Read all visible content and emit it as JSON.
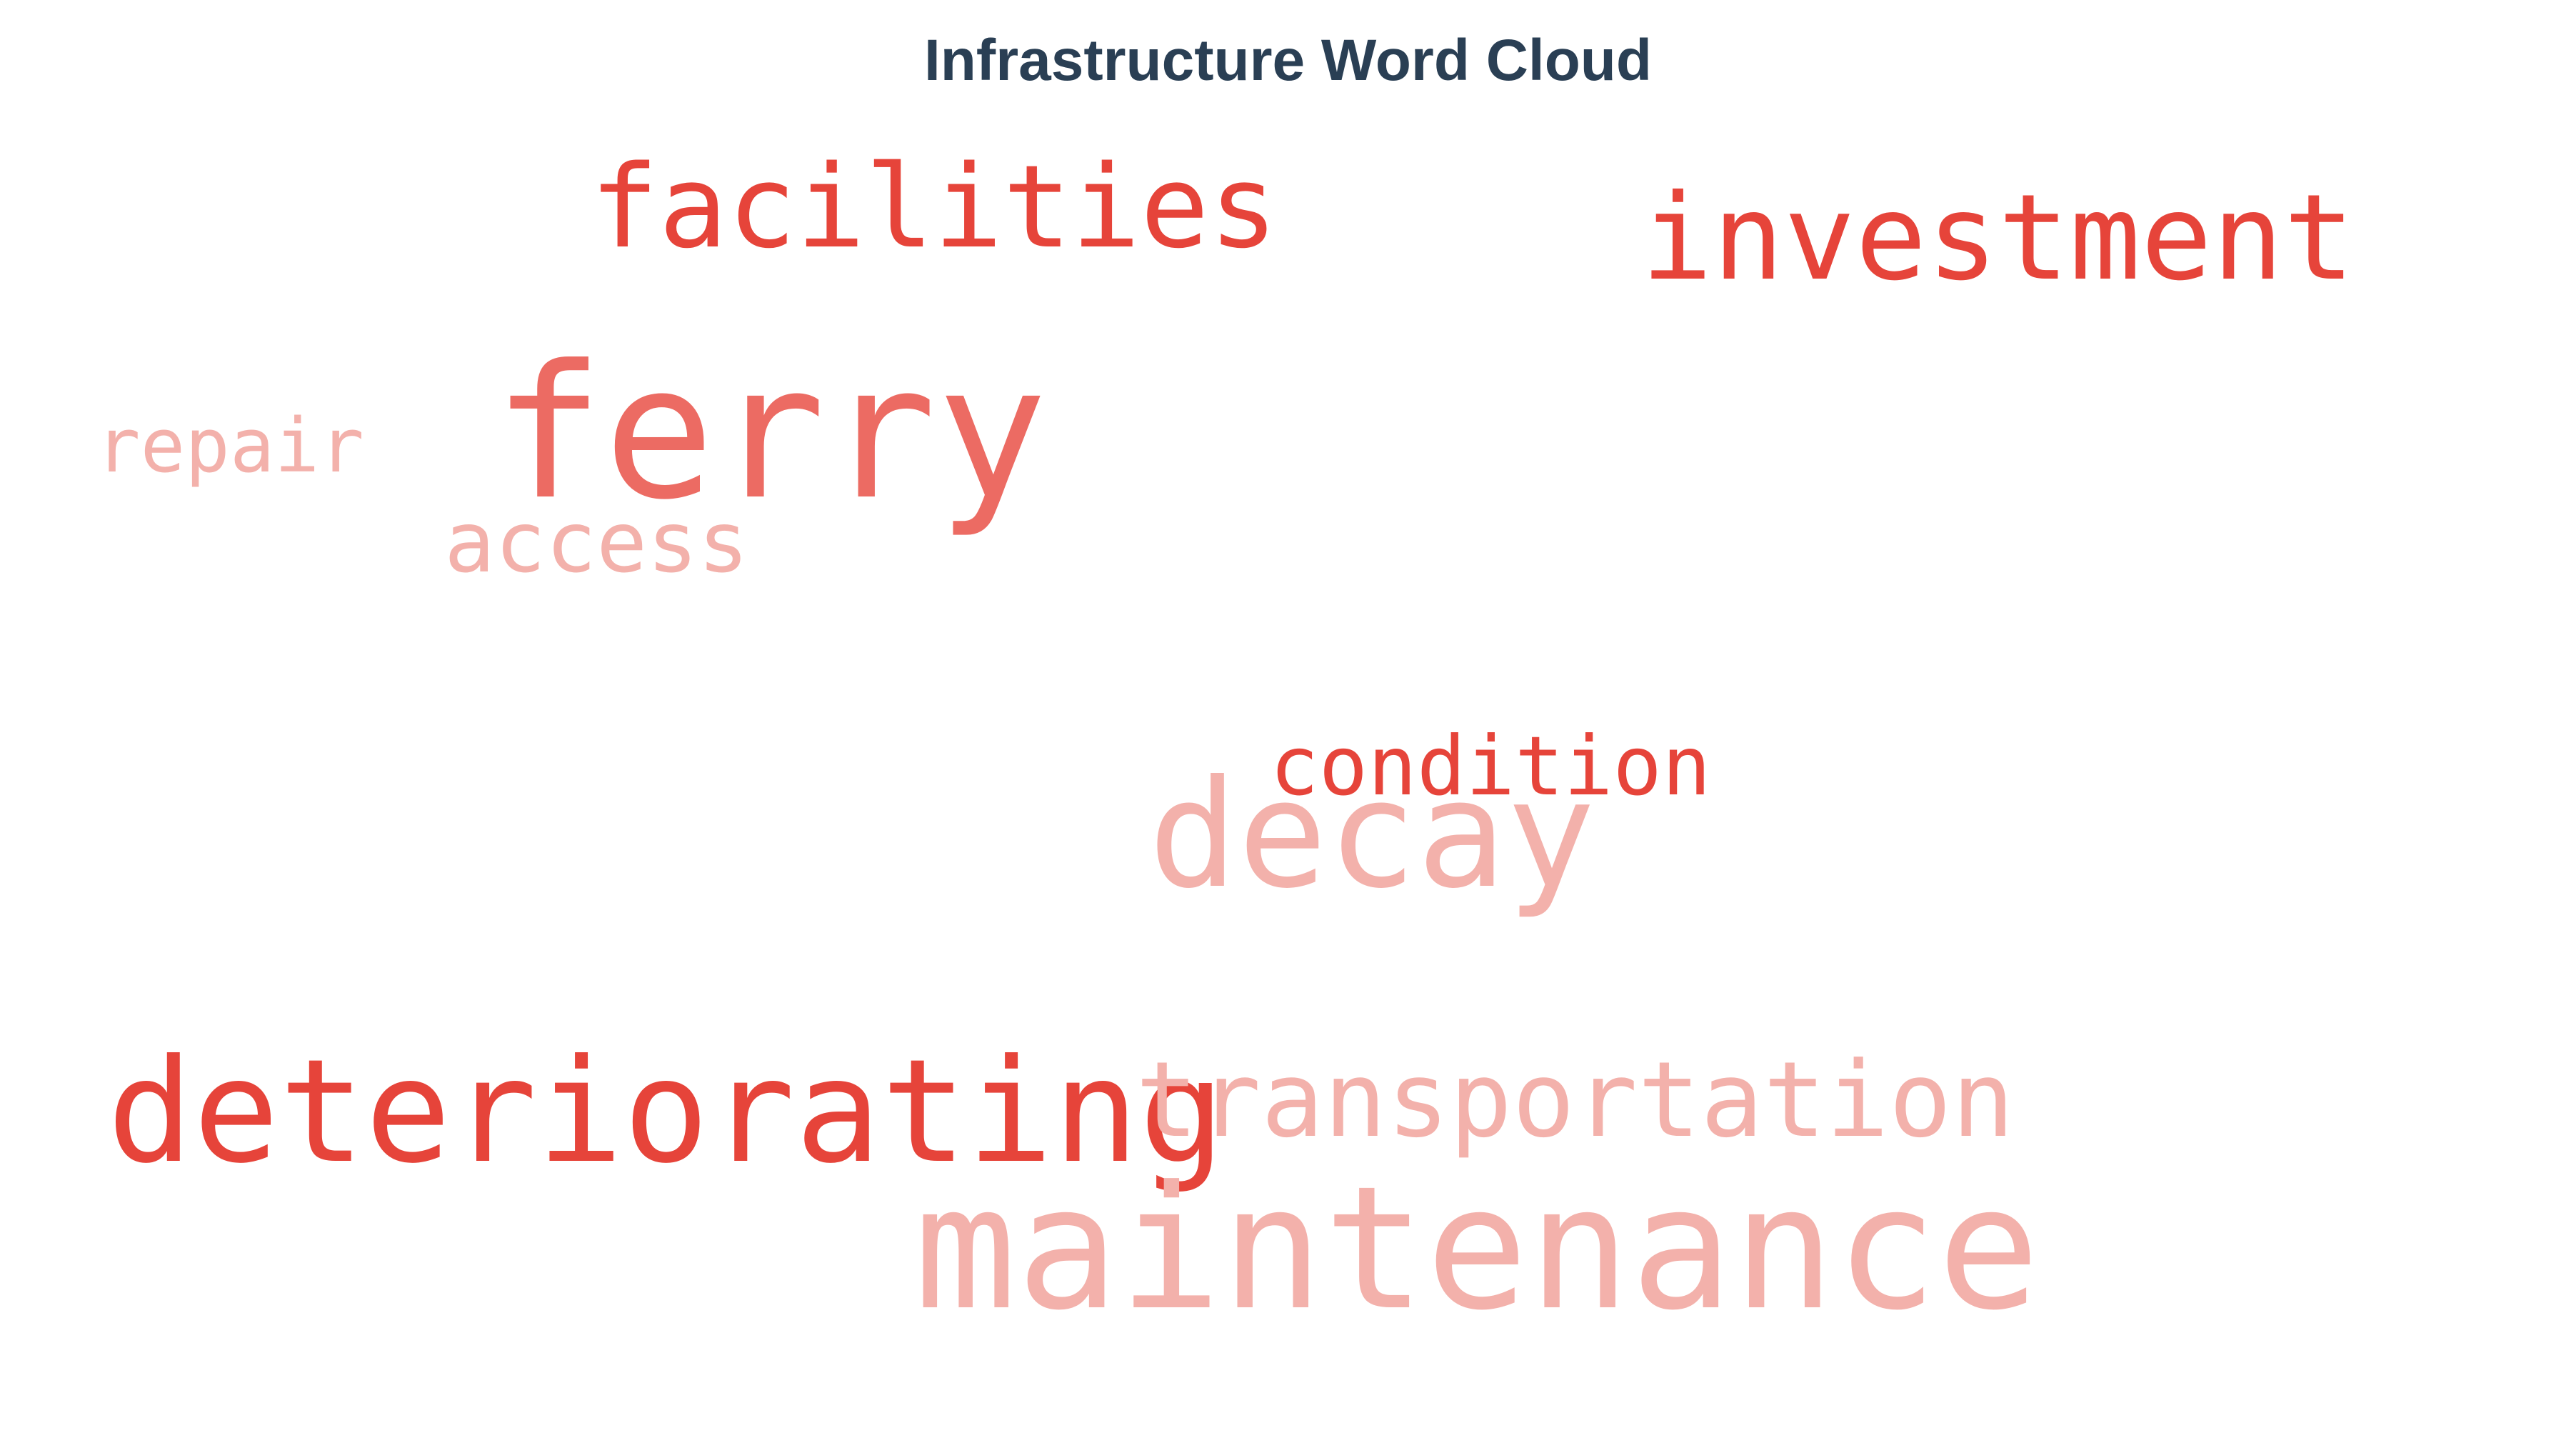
{
  "chart_data": {
    "type": "wordcloud",
    "title": "Infrastructure Word Cloud",
    "palette": {
      "strong": "#e6443a",
      "medium": "#ec6b63",
      "light": "#f3b1ab"
    },
    "words": [
      {
        "text": "facilities",
        "tone": "strong"
      },
      {
        "text": "investment",
        "tone": "strong"
      },
      {
        "text": "repair",
        "tone": "light"
      },
      {
        "text": "ferry",
        "tone": "medium"
      },
      {
        "text": "access",
        "tone": "light"
      },
      {
        "text": "condition",
        "tone": "strong"
      },
      {
        "text": "decay",
        "tone": "light"
      },
      {
        "text": "deteriorating",
        "tone": "strong"
      },
      {
        "text": "transportation",
        "tone": "light"
      },
      {
        "text": "maintenance",
        "tone": "light"
      }
    ]
  }
}
